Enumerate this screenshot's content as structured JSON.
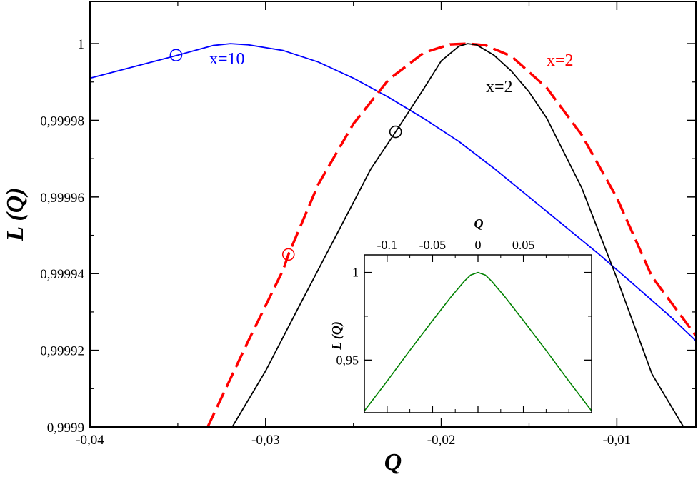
{
  "chart_data": [
    {
      "type": "line",
      "title": "",
      "xlabel": "Q",
      "ylabel": "L (Q)",
      "xlim": [
        -0.04,
        -0.0055
      ],
      "ylim": [
        0.9999,
        1.000011
      ],
      "grid": false,
      "x_ticks": [
        -0.04,
        -0.03,
        -0.02,
        -0.01
      ],
      "x_tick_labels": [
        "-0,04",
        "-0,03",
        "-0,02",
        "-0,01"
      ],
      "y_ticks": [
        0.9999,
        0.99992,
        0.99994,
        0.99996,
        0.99998,
        1.0
      ],
      "y_tick_labels": [
        "0,9999",
        "0,99992",
        "0,99994",
        "0,99996",
        "0,99998",
        "1"
      ],
      "series": [
        {
          "label": "x=10",
          "color": "#0000ff",
          "style": "solid",
          "x": [
            -0.04,
            -0.035,
            -0.033,
            -0.032,
            -0.031,
            -0.029,
            -0.027,
            -0.025,
            -0.023,
            -0.021,
            -0.019,
            -0.017,
            -0.015,
            -0.013,
            -0.011,
            -0.009,
            -0.007,
            -0.0055
          ],
          "y": [
            0.999991,
            0.999997,
            0.9999995,
            1.0,
            0.9999997,
            0.9999982,
            0.9999952,
            0.999991,
            0.999986,
            0.9999805,
            0.9999745,
            0.9999675,
            0.99996,
            0.9999525,
            0.999945,
            0.999937,
            0.999929,
            0.9999225
          ],
          "marker": {
            "x": -0.0351,
            "y": 0.999997
          }
        },
        {
          "label": "x=2",
          "color": "#ff0000",
          "style": "dashed",
          "x": [
            -0.0333,
            -0.031,
            -0.029,
            -0.0287,
            -0.027,
            -0.025,
            -0.023,
            -0.021,
            -0.0195,
            -0.0185,
            -0.0175,
            -0.016,
            -0.014,
            -0.012,
            -0.01,
            -0.008,
            -0.0055
          ],
          "y": [
            0.9999,
            0.9999223,
            0.999941,
            0.999945,
            0.9999633,
            0.9999791,
            0.9999906,
            0.9999976,
            0.9999998,
            1.0,
            0.9999996,
            0.9999967,
            0.9999885,
            0.9999762,
            0.9999598,
            0.9999392,
            0.9999238
          ],
          "marker": {
            "x": -0.0287,
            "y": 0.999945
          }
        },
        {
          "label": "x=2",
          "color": "#000000",
          "style": "solid",
          "x": [
            -0.0319,
            -0.03,
            -0.028,
            -0.026,
            -0.024,
            -0.0226,
            -0.021,
            -0.02,
            -0.019,
            -0.0185,
            -0.018,
            -0.017,
            -0.016,
            -0.015,
            -0.014,
            -0.012,
            -0.01,
            -0.008,
            -0.0062
          ],
          "y": [
            0.9999,
            0.9999146,
            0.9999323,
            0.9999498,
            0.9999674,
            0.999977,
            0.9999882,
            0.9999955,
            0.9999993,
            1.0,
            0.9999997,
            0.999997,
            0.9999928,
            0.9999874,
            0.9999806,
            0.9999624,
            0.9999388,
            0.9999138,
            0.9999
          ],
          "marker": {
            "x": -0.0226,
            "y": 0.999977
          }
        }
      ]
    },
    {
      "type": "line",
      "title": "",
      "xlabel": "Q",
      "ylabel": "L (Q)",
      "x_axis_position": "top",
      "xlim": [
        -0.125,
        0.125
      ],
      "ylim": [
        0.92,
        1.01
      ],
      "grid": false,
      "x_ticks": [
        -0.1,
        -0.05,
        0,
        0.05
      ],
      "x_tick_labels": [
        "-0.1",
        "-0.05",
        "0",
        "0.05"
      ],
      "y_ticks": [
        0.95,
        1.0
      ],
      "y_tick_labels": [
        "0,95",
        "1"
      ],
      "series": [
        {
          "color": "#008000",
          "style": "solid",
          "x": [
            -0.125,
            -0.1,
            -0.075,
            -0.05,
            -0.03,
            -0.015,
            -0.008,
            0,
            0.008,
            0.015,
            0.03,
            0.05,
            0.075,
            0.1,
            0.125
          ],
          "y": [
            0.921,
            0.938,
            0.9555,
            0.9725,
            0.9858,
            0.995,
            0.9985,
            1.0,
            0.9985,
            0.995,
            0.9858,
            0.9725,
            0.9555,
            0.938,
            0.921
          ]
        }
      ]
    }
  ]
}
